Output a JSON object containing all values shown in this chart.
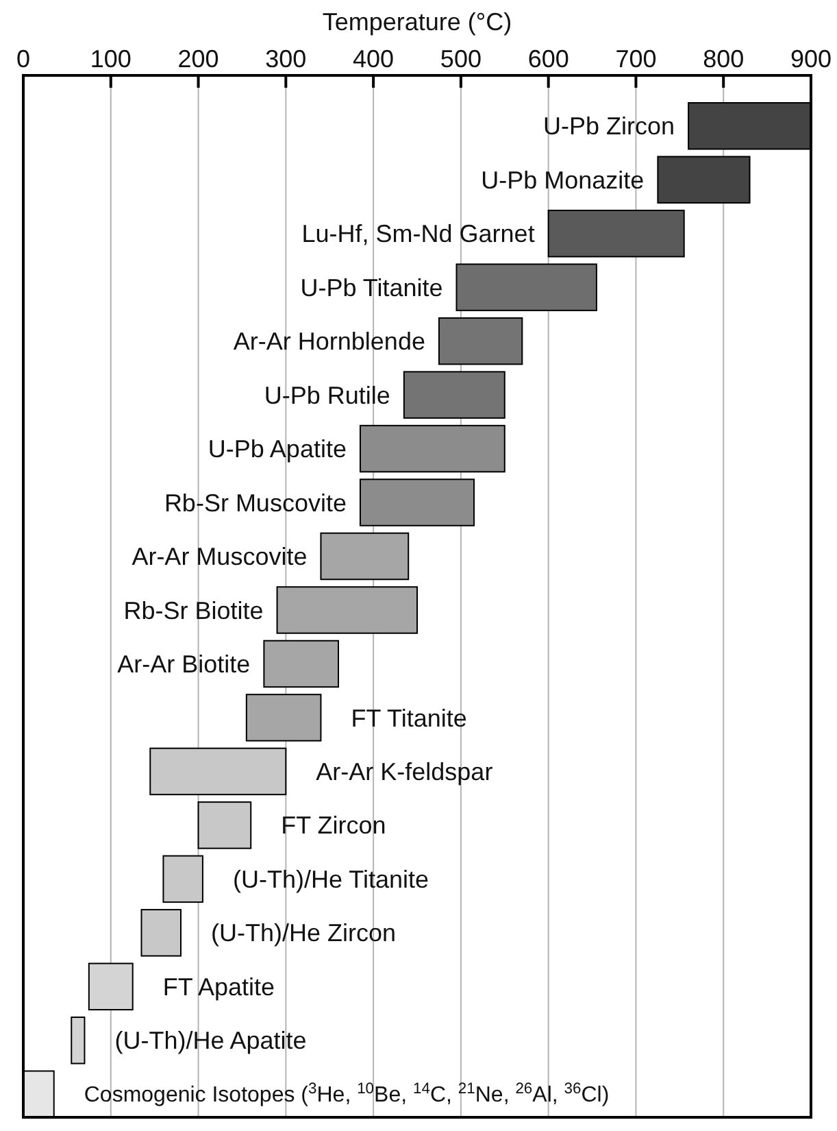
{
  "chart_data": {
    "type": "bar",
    "orientation": "horizontal",
    "xlabel": "Temperature (°C)",
    "categories": [
      "U-Pb Zircon",
      "U-Pb Monazite",
      "Lu-Hf, Sm-Nd Garnet",
      "U-Pb Titanite",
      "Ar-Ar Hornblende",
      "U-Pb Rutile",
      "U-Pb Apatite",
      "Rb-Sr Muscovite",
      "Ar-Ar Muscovite",
      "Rb-Sr Biotite",
      "Ar-Ar Biotite",
      "FT Titanite",
      "Ar-Ar K-feldspar",
      "FT Zircon",
      "(U-Th)/He Titanite",
      "(U-Th)/He Zircon",
      "FT Apatite",
      "(U-Th)/He Apatite",
      "Cosmogenic Isotopes ($^{3}$He, $^{10}$Be, $^{14}$C, $^{21}$Ne, $^{26}$Al, $^{36}$Cl)"
    ],
    "base": [
      760,
      725,
      600,
      495,
      475,
      435,
      385,
      385,
      340,
      290,
      275,
      255,
      145,
      200,
      160,
      135,
      75,
      55,
      0
    ],
    "values": [
      140,
      105,
      155,
      160,
      95,
      115,
      165,
      130,
      100,
      160,
      85,
      85,
      155,
      60,
      45,
      45,
      50,
      15,
      35
    ],
    "colors": [
      "#444444",
      "#444444",
      "#5a5a5a",
      "#6e6e6e",
      "#747474",
      "#747474",
      "#8c8c8c",
      "#8c8c8c",
      "#a6a6a6",
      "#a6a6a6",
      "#a6a6a6",
      "#a6a6a6",
      "#c8c8c8",
      "#c8c8c8",
      "#c8c8c8",
      "#c8c8c8",
      "#d4d4d4",
      "#d4d4d4",
      "#e6e6e6"
    ],
    "xlim": [
      0,
      900
    ],
    "xticks": [
      0,
      100,
      200,
      300,
      400,
      500,
      600,
      700,
      800,
      900
    ],
    "grid": "x"
  }
}
